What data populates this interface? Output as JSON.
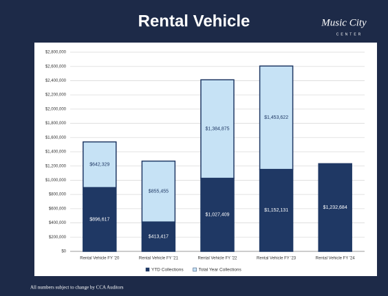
{
  "brand": {
    "name": "Music City",
    "sub": "CENTER"
  },
  "footer": "All numbers subject to change by CCA Auditors",
  "chart_data": {
    "type": "stacked-bar",
    "title": "Rental Vehicle",
    "categories": [
      "Rental Vehicle FY '20",
      "Rental Vehicle FY '21",
      "Rental Vehicle FY '22",
      "Rental Vehicle FY '23",
      "Rental Vehicle FY '24"
    ],
    "series": [
      {
        "name": "YTD Collections",
        "color": "#1f3864",
        "values": [
          896617,
          413417,
          1027409,
          1152131,
          1232684
        ],
        "value_labels": [
          "$896,617",
          "$413,417",
          "$1,027,409",
          "$1,152,131",
          "$1,232,684"
        ]
      },
      {
        "name": "Total Year Collections",
        "color": "#c6e2f5",
        "values": [
          642329,
          855455,
          1384875,
          1453622,
          null
        ],
        "value_labels": [
          "$642,329",
          "$855,455",
          "$1,384,875",
          "$1,453,622",
          null
        ]
      }
    ],
    "ylim": [
      0,
      2800000
    ],
    "yticks": [
      {
        "value": 0,
        "label": "$0"
      },
      {
        "value": 200000,
        "label": "$200,000"
      },
      {
        "value": 400000,
        "label": "$400,000"
      },
      {
        "value": 600000,
        "label": "$600,000"
      },
      {
        "value": 800000,
        "label": "$800,000"
      },
      {
        "value": 1000000,
        "label": "$1,000,000"
      },
      {
        "value": 1200000,
        "label": "$1,200,000"
      },
      {
        "value": 1400000,
        "label": "$1,400,000"
      },
      {
        "value": 1600000,
        "label": "$1,600,000"
      },
      {
        "value": 1800000,
        "label": "$1,800,000"
      },
      {
        "value": 2000000,
        "label": "$2,000,000"
      },
      {
        "value": 2200000,
        "label": "$2,200,000"
      },
      {
        "value": 2400000,
        "label": "$2,400,000"
      },
      {
        "value": 2600000,
        "label": "$2,600,000"
      },
      {
        "value": 2800000,
        "label": "$2,800,000"
      }
    ],
    "grid": true,
    "legend": "bottom"
  }
}
